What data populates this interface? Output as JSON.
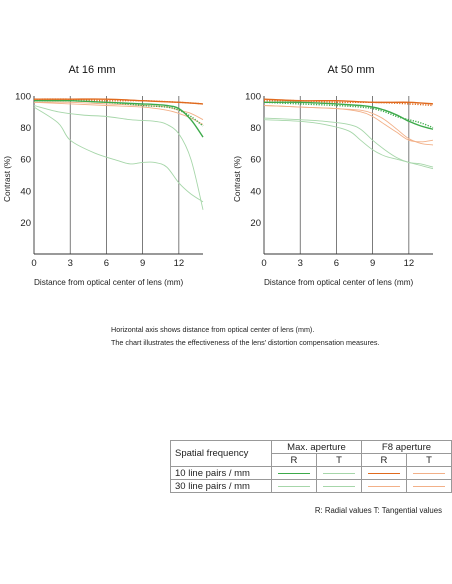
{
  "notes": [
    "Horizontal axis shows distance from optical center of lens (mm).",
    "The chart illustrates the effectiveness of the lens' distortion compensation measures."
  ],
  "legend": {
    "header_label": "Spatial frequency",
    "group_max": "Max. aperture",
    "group_f8": "F8 aperture",
    "r_label": "R",
    "t_label": "T",
    "row1_label": "10 line pairs / mm",
    "row2_label": "30 line pairs / mm",
    "note": "R: Radial values  T: Tangential values",
    "colors": {
      "max_10": "#3daa4a",
      "max_30": "#a6d6a9",
      "f8_10": "#e06a1e",
      "f8_30": "#f2b088"
    }
  },
  "chart_data": [
    {
      "type": "line",
      "title": "At 16 mm",
      "xlabel": "Distance from optical center of lens (mm)",
      "ylabel": "Contrast (%)",
      "xlim": [
        0,
        14
      ],
      "ylim": [
        0,
        100
      ],
      "xticks": [
        "0",
        "3",
        "6",
        "9",
        "12"
      ],
      "yticks": [
        "20",
        "40",
        "60",
        "80",
        "100"
      ],
      "series": [
        {
          "group": "max",
          "freq": 10,
          "orientation": "R",
          "color": "#3daa4a",
          "style": "solid",
          "x": [
            0,
            3,
            6,
            9,
            11,
            12,
            13,
            14
          ],
          "y": [
            97,
            97,
            96,
            95,
            94,
            92,
            85,
            74
          ]
        },
        {
          "group": "max",
          "freq": 10,
          "orientation": "T",
          "color": "#3daa4a",
          "style": "dotted",
          "x": [
            0,
            3,
            6,
            9,
            11,
            12,
            13,
            14
          ],
          "y": [
            97,
            97,
            96,
            94,
            93,
            91,
            87,
            81
          ]
        },
        {
          "group": "max",
          "freq": 30,
          "orientation": "R",
          "color": "#a6d6a9",
          "style": "solid",
          "x": [
            0,
            2,
            4,
            6,
            8,
            10,
            11,
            12,
            13,
            14
          ],
          "y": [
            94,
            90,
            88,
            87,
            85,
            84,
            82,
            76,
            60,
            28
          ]
        },
        {
          "group": "max",
          "freq": 30,
          "orientation": "T",
          "color": "#a6d6a9",
          "style": "solid",
          "x": [
            0,
            2,
            3,
            5,
            7,
            8,
            9,
            10,
            11,
            12,
            13,
            14
          ],
          "y": [
            93,
            83,
            72,
            64,
            59,
            57,
            58,
            58,
            55,
            45,
            38,
            33
          ]
        },
        {
          "group": "f8",
          "freq": 10,
          "orientation": "R",
          "color": "#e06a1e",
          "style": "solid",
          "x": [
            0,
            3,
            6,
            9,
            12,
            14
          ],
          "y": [
            98,
            98,
            98,
            97,
            96,
            95
          ]
        },
        {
          "group": "f8",
          "freq": 10,
          "orientation": "T",
          "color": "#e06a1e",
          "style": "dotted",
          "x": [
            0,
            3,
            6,
            9,
            12,
            14
          ],
          "y": [
            98,
            98,
            97,
            97,
            96,
            95
          ]
        },
        {
          "group": "f8",
          "freq": 30,
          "orientation": "R",
          "color": "#f2b088",
          "style": "solid",
          "x": [
            0,
            3,
            6,
            9,
            11,
            12,
            13,
            14
          ],
          "y": [
            96,
            96,
            95,
            94,
            93,
            91,
            89,
            85
          ]
        },
        {
          "group": "f8",
          "freq": 30,
          "orientation": "T",
          "color": "#f2b088",
          "style": "solid",
          "x": [
            0,
            3,
            6,
            9,
            11,
            12,
            13,
            14
          ],
          "y": [
            96,
            95,
            94,
            93,
            91,
            89,
            86,
            82
          ]
        }
      ]
    },
    {
      "type": "line",
      "title": "At 50 mm",
      "xlabel": "Distance from optical center of lens (mm)",
      "ylabel": "Contrast (%)",
      "xlim": [
        0,
        14
      ],
      "ylim": [
        0,
        100
      ],
      "xticks": [
        "0",
        "3",
        "6",
        "9",
        "12"
      ],
      "yticks": [
        "20",
        "40",
        "60",
        "80",
        "100"
      ],
      "series": [
        {
          "group": "max",
          "freq": 10,
          "orientation": "R",
          "color": "#3daa4a",
          "style": "solid",
          "x": [
            0,
            3,
            6,
            8,
            9,
            10,
            11,
            12,
            13,
            14
          ],
          "y": [
            96,
            96,
            95,
            94,
            93,
            91,
            88,
            84,
            81,
            79
          ]
        },
        {
          "group": "max",
          "freq": 10,
          "orientation": "T",
          "color": "#3daa4a",
          "style": "dotted",
          "x": [
            0,
            3,
            6,
            8,
            9,
            10,
            11,
            12,
            13,
            14
          ],
          "y": [
            96,
            95,
            94,
            93,
            92,
            90,
            87,
            85,
            83,
            80
          ]
        },
        {
          "group": "max",
          "freq": 30,
          "orientation": "R",
          "color": "#a6d6a9",
          "style": "solid",
          "x": [
            0,
            3,
            5,
            7,
            8,
            9,
            10,
            11,
            12,
            13,
            14
          ],
          "y": [
            86,
            85,
            84,
            82,
            79,
            72,
            66,
            61,
            58,
            57,
            55
          ]
        },
        {
          "group": "max",
          "freq": 30,
          "orientation": "T",
          "color": "#a6d6a9",
          "style": "solid",
          "x": [
            0,
            3,
            5,
            7,
            8,
            9,
            10,
            11,
            12,
            13,
            14
          ],
          "y": [
            85,
            84,
            82,
            78,
            72,
            66,
            62,
            60,
            58,
            56,
            54
          ]
        },
        {
          "group": "f8",
          "freq": 10,
          "orientation": "R",
          "color": "#e06a1e",
          "style": "solid",
          "x": [
            0,
            3,
            6,
            9,
            12,
            14
          ],
          "y": [
            98,
            97,
            97,
            96,
            96,
            95
          ]
        },
        {
          "group": "f8",
          "freq": 10,
          "orientation": "T",
          "color": "#e06a1e",
          "style": "dotted",
          "x": [
            0,
            3,
            6,
            9,
            12,
            14
          ],
          "y": [
            97,
            97,
            96,
            96,
            95,
            94
          ]
        },
        {
          "group": "f8",
          "freq": 30,
          "orientation": "R",
          "color": "#f2b088",
          "style": "solid",
          "x": [
            0,
            3,
            6,
            8,
            9,
            10,
            11,
            12,
            13,
            14
          ],
          "y": [
            94,
            93,
            92,
            91,
            89,
            85,
            79,
            73,
            70,
            69
          ]
        },
        {
          "group": "f8",
          "freq": 30,
          "orientation": "T",
          "color": "#f2b088",
          "style": "solid",
          "x": [
            0,
            3,
            6,
            8,
            9,
            10,
            11,
            12,
            13,
            14
          ],
          "y": [
            94,
            93,
            92,
            90,
            87,
            82,
            77,
            72,
            71,
            72
          ]
        }
      ]
    }
  ]
}
